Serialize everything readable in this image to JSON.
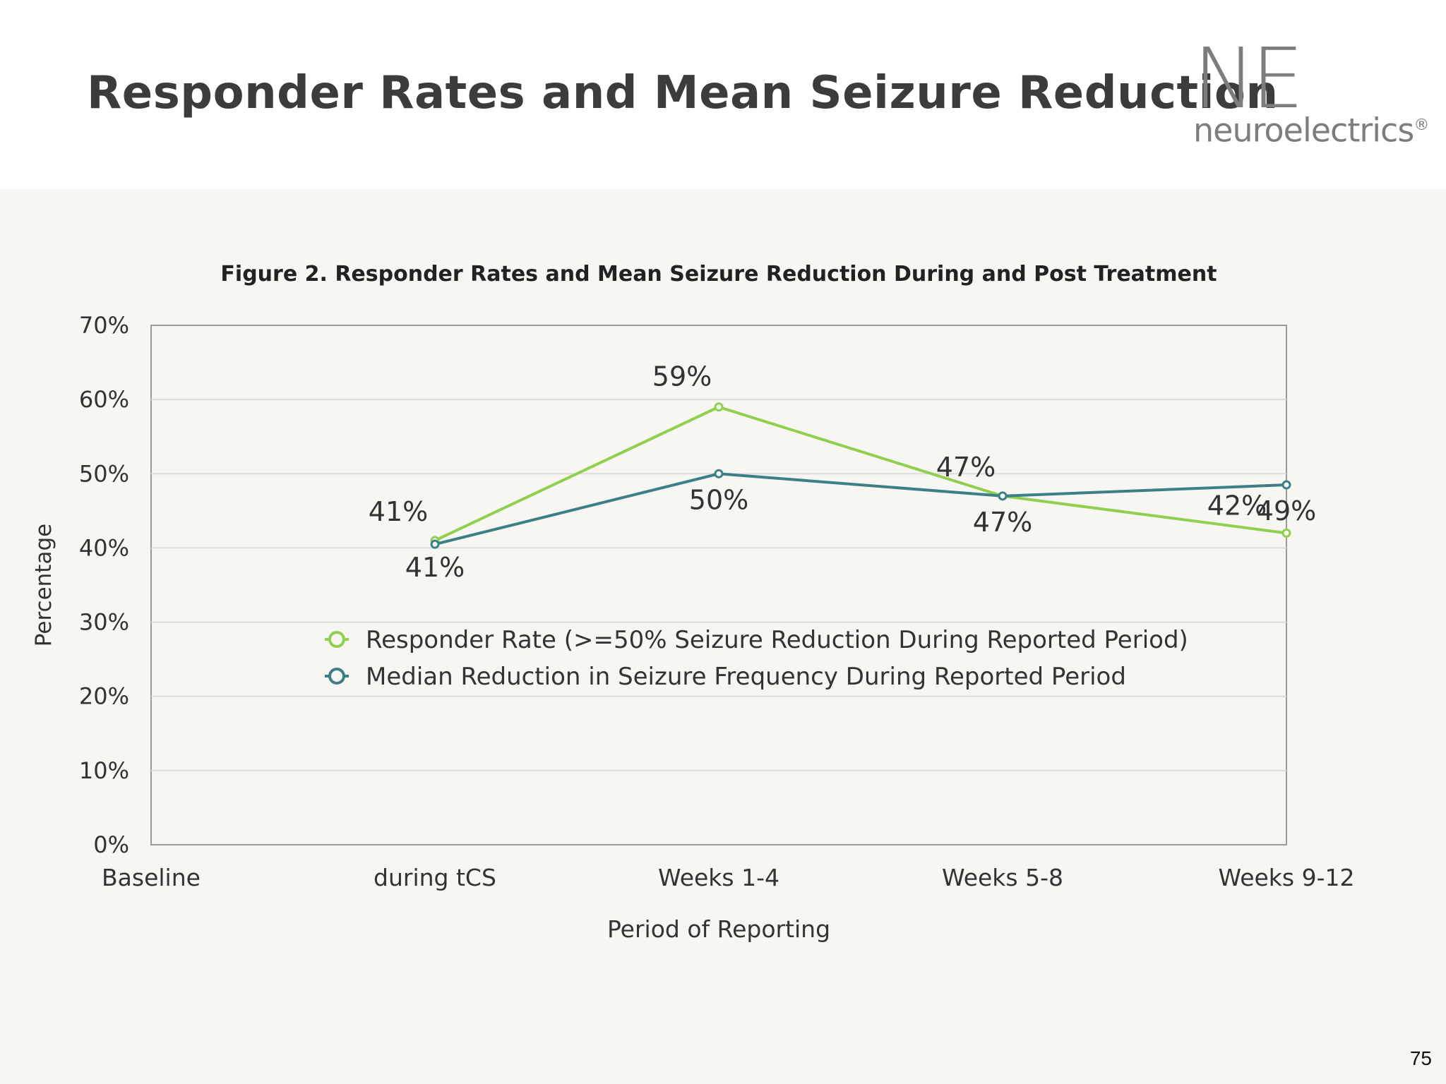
{
  "slide": {
    "title": "Responder Rates and Mean Seizure Reduction",
    "page_number": "75",
    "logo": {
      "mark": "NE",
      "word": "neuroelectrics",
      "reg": "®"
    }
  },
  "chart_data": {
    "type": "line",
    "title": "Figure 2. Responder Rates and Mean Seizure Reduction During and Post Treatment",
    "xlabel": "Period of Reporting",
    "ylabel": "Percentage",
    "categories": [
      "Baseline",
      "during tCS",
      "Weeks 1-4",
      "Weeks 5-8",
      "Weeks 9-12"
    ],
    "ylim": [
      0,
      70
    ],
    "yticks": [
      "0%",
      "10%",
      "20%",
      "30%",
      "40%",
      "50%",
      "60%",
      "70%"
    ],
    "grid": true,
    "legend_position": "inside-middle",
    "series": [
      {
        "name": "Responder Rate (>=50% Seizure Reduction During Reported Period)",
        "color": "#8fd14f",
        "values": [
          null,
          41,
          59,
          47,
          42
        ],
        "labels": [
          "",
          "41%",
          "59%",
          "47%",
          "42%"
        ]
      },
      {
        "name": "Median Reduction in Seizure Frequency During Reported Period",
        "color": "#3d7f86",
        "values": [
          null,
          40.5,
          50,
          47,
          48.5
        ],
        "labels": [
          "",
          "41%",
          "50%",
          "47%",
          "49%"
        ]
      }
    ]
  }
}
